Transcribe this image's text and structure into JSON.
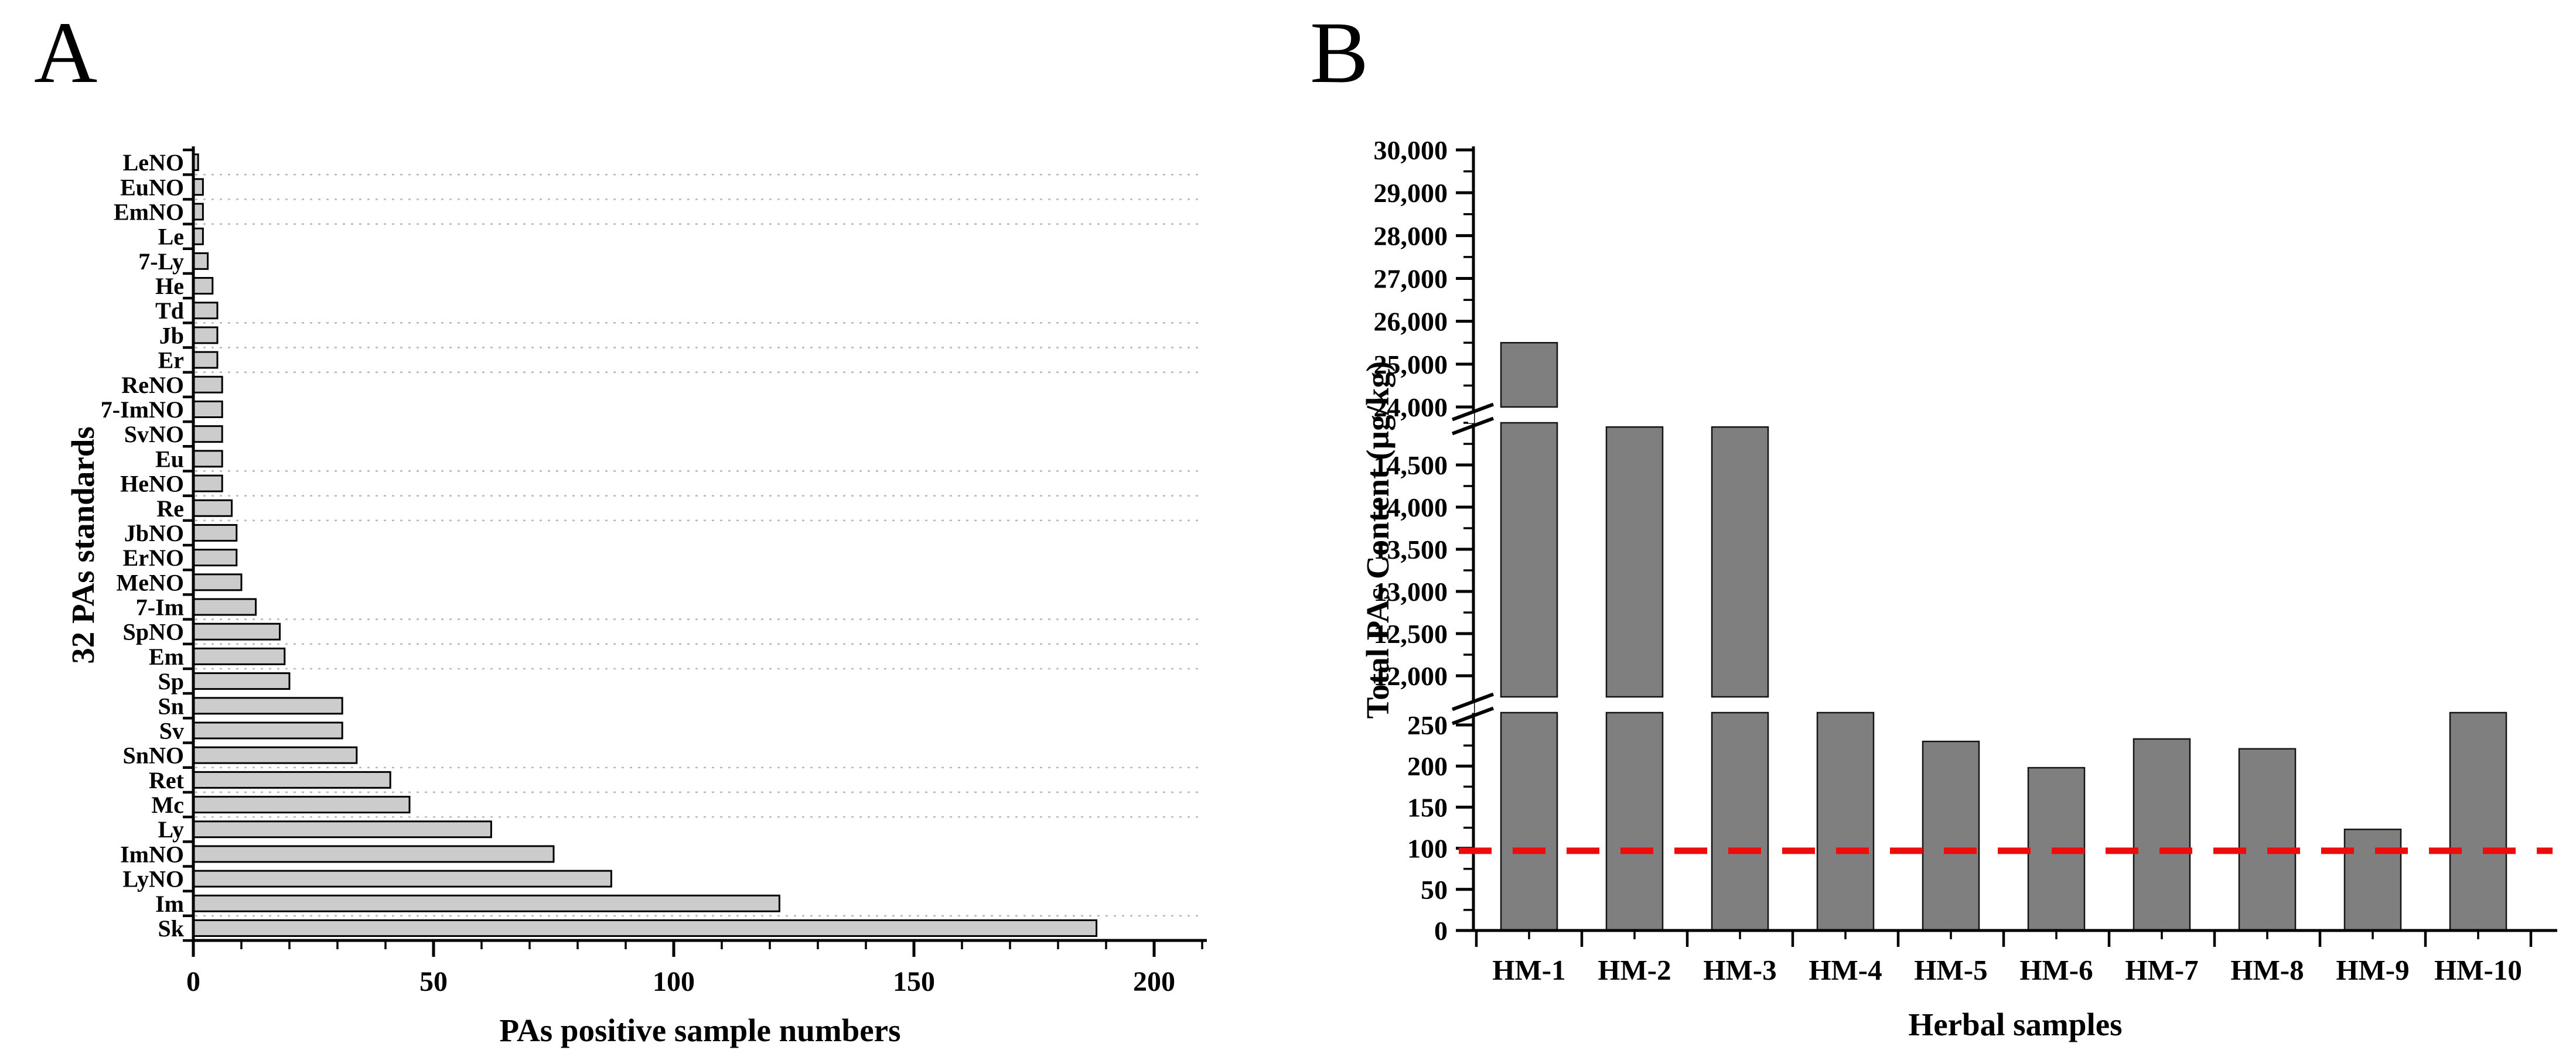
{
  "figure": {
    "panel_a_letter": "A",
    "panel_b_letter": "B",
    "background_color": "#ffffff"
  },
  "chart_data": [
    {
      "id": "panel-a",
      "type": "bar",
      "orientation": "horizontal",
      "title": "",
      "xlabel": "PAs positive sample numbers",
      "ylabel": "32 PAs standards",
      "xlim": [
        0,
        210
      ],
      "x_major_ticks": [
        0,
        50,
        100,
        150,
        200
      ],
      "x_minor_step": 10,
      "grid": "dotted-horizontal",
      "grid_color": "#b9b9b9",
      "bar_fill": "#cccccc",
      "bar_stroke": "#000000",
      "axis_color": "#000000",
      "categories_top_to_bottom": [
        "LeNO",
        "EuNO",
        "EmNO",
        "Le",
        "7-Ly",
        "He",
        "Td",
        "Jb",
        "Er",
        "ReNO",
        "7-ImNO",
        "SvNO",
        "Eu",
        "HeNO",
        "Re",
        "JbNO",
        "ErNO",
        "MeNO",
        "7-Im",
        "SpNO",
        "Em",
        "Sp",
        "Sn",
        "Sv",
        "SnNO",
        "Ret",
        "Mc",
        "Ly",
        "ImNO",
        "LyNO",
        "Im",
        "Sk"
      ],
      "values": [
        1,
        2,
        2,
        2,
        3,
        4,
        5,
        5,
        5,
        6,
        6,
        6,
        6,
        6,
        8,
        9,
        9,
        10,
        13,
        18,
        19,
        20,
        31,
        31,
        34,
        41,
        45,
        62,
        75,
        87,
        122,
        188
      ]
    },
    {
      "id": "panel-b",
      "type": "bar",
      "orientation": "vertical",
      "title": "",
      "xlabel": "Herbal samples",
      "ylabel": "Total PAs Content (µg/kg)",
      "categories": [
        "HM-1",
        "HM-2",
        "HM-3",
        "HM-4",
        "HM-5",
        "HM-6",
        "HM-7",
        "HM-8",
        "HM-9",
        "HM-10"
      ],
      "values": [
        25500,
        14950,
        14950,
        290,
        230,
        198,
        233,
        221,
        123,
        290
      ],
      "bars_truncated_at_axis_break": [
        "HM-2",
        "HM-3",
        "HM-4",
        "HM-10"
      ],
      "bar_fill": "#7f7f7f",
      "bar_stroke": "#141414",
      "axis_color": "#000000",
      "axis_segments": [
        {
          "domain": [
            0,
            265
          ],
          "major_ticks": [
            0,
            50,
            100,
            150,
            200,
            250
          ],
          "minor_step": 25
        },
        {
          "domain": [
            11750,
            15000
          ],
          "major_ticks": [
            12000,
            12500,
            13000,
            13500,
            14000,
            14500
          ],
          "minor_step": 250
        },
        {
          "domain": [
            24000,
            30000
          ],
          "major_ticks": [
            24000,
            25000,
            26000,
            27000,
            28000,
            29000,
            30000
          ],
          "minor_step": 500
        }
      ],
      "threshold_line": {
        "value": 97,
        "color": "#ee0b0b",
        "style": "dashed"
      }
    }
  ]
}
